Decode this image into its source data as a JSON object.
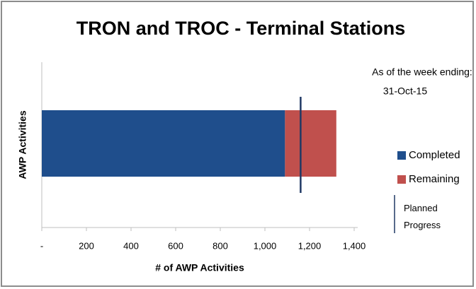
{
  "chart_data": {
    "type": "stacked-bar-horizontal",
    "title": "TRON and TROC - Terminal Stations",
    "annotation": [
      "As of the week ending:",
      "31-Oct-15"
    ],
    "x_label": "# of AWP Activities",
    "y_label": "AWP Activities",
    "series": [
      {
        "name": "Completed",
        "color": "#1f4e8c",
        "values": [
          1090
        ]
      },
      {
        "name": "Remaining",
        "color": "#c0504d",
        "values": [
          230
        ]
      }
    ],
    "planned": {
      "name": "Planned Progress",
      "value": 1160,
      "color": "#1f3864"
    },
    "xlim": [
      0,
      1400
    ],
    "xticks": [
      {
        "value": 0,
        "label": "-"
      },
      200,
      400,
      600,
      800,
      {
        "value": 1000,
        "label": "1,000"
      },
      {
        "value": 1200,
        "label": "1,200"
      },
      {
        "value": 1400,
        "label": "1,400"
      }
    ],
    "legend": "right"
  }
}
